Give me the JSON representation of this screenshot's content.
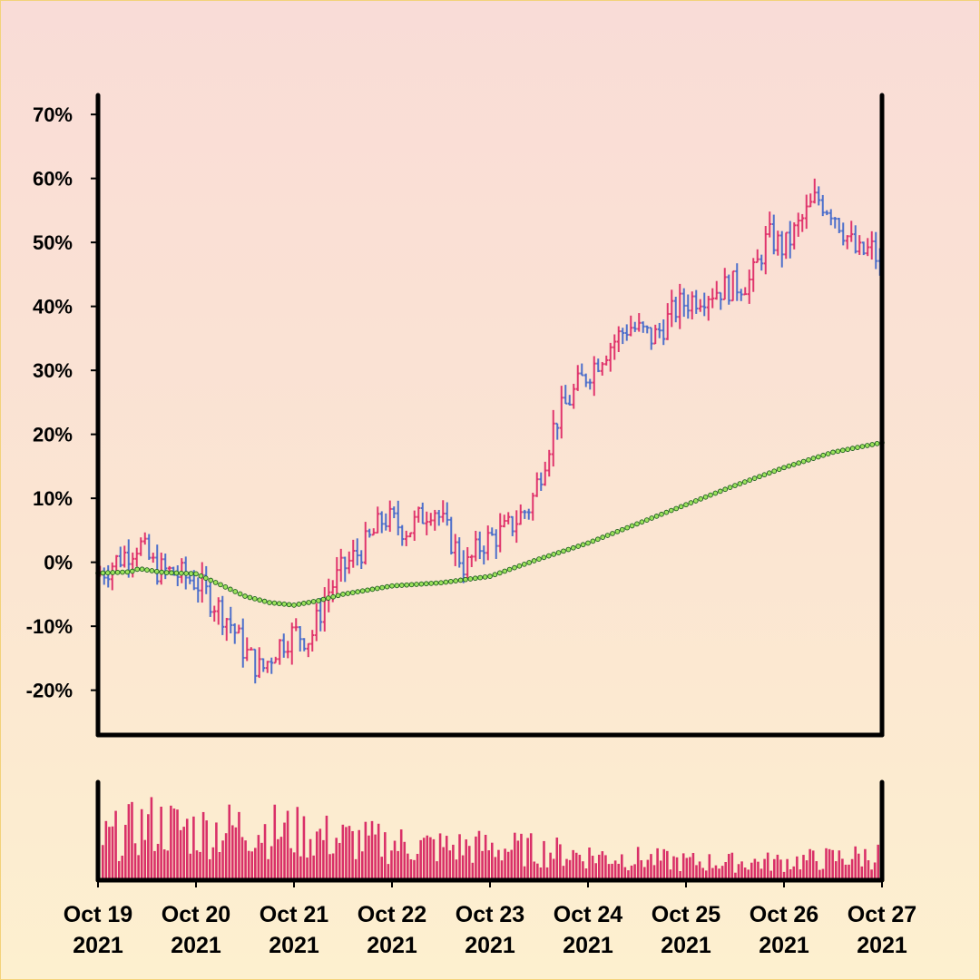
{
  "chart_data": {
    "type": "ohlc",
    "title": "",
    "xlabel": "",
    "ylabel": "",
    "ylim": [
      -27,
      73
    ],
    "y_ticks": [
      {
        "value": 70,
        "label": "70%"
      },
      {
        "value": 60,
        "label": "60%"
      },
      {
        "value": 50,
        "label": "50%"
      },
      {
        "value": 40,
        "label": "40%"
      },
      {
        "value": 30,
        "label": "30%"
      },
      {
        "value": 20,
        "label": "20%"
      },
      {
        "value": 10,
        "label": "10%"
      },
      {
        "value": 0,
        "label": "0%"
      },
      {
        "value": -10,
        "label": "-10%"
      },
      {
        "value": -20,
        "label": "-20%"
      }
    ],
    "x_range": [
      "2021-10-19",
      "2021-10-27"
    ],
    "x_ticks": [
      {
        "date": "2021-10-19",
        "line1": "Oct 19",
        "line2": "2021"
      },
      {
        "date": "2021-10-20",
        "line1": "Oct 20",
        "line2": "2021"
      },
      {
        "date": "2021-10-21",
        "line1": "Oct 21",
        "line2": "2021"
      },
      {
        "date": "2021-10-22",
        "line1": "Oct 22",
        "line2": "2021"
      },
      {
        "date": "2021-10-23",
        "line1": "Oct 23",
        "line2": "2021"
      },
      {
        "date": "2021-10-24",
        "line1": "Oct 24",
        "line2": "2021"
      },
      {
        "date": "2021-10-25",
        "line1": "Oct 25",
        "line2": "2021"
      },
      {
        "date": "2021-10-26",
        "line1": "Oct 26",
        "line2": "2021"
      },
      {
        "date": "2021-10-27",
        "line1": "Oct 27",
        "line2": "2021"
      }
    ],
    "price_path": [
      [
        "2021-10-19 00:00",
        -2
      ],
      [
        "2021-10-19 06:00",
        1
      ],
      [
        "2021-10-19 10:00",
        3
      ],
      [
        "2021-10-19 14:00",
        -1
      ],
      [
        "2021-10-19 20:00",
        -2
      ],
      [
        "2021-10-20 00:00",
        -3
      ],
      [
        "2021-10-20 04:00",
        -6
      ],
      [
        "2021-10-20 08:00",
        -9
      ],
      [
        "2021-10-20 12:00",
        -14
      ],
      [
        "2021-10-20 16:00",
        -17
      ],
      [
        "2021-10-20 20:00",
        -13
      ],
      [
        "2021-10-21 00:00",
        -11
      ],
      [
        "2021-10-21 04:00",
        -12
      ],
      [
        "2021-10-21 08:00",
        -5
      ],
      [
        "2021-10-21 12:00",
        -1
      ],
      [
        "2021-10-21 18:00",
        3
      ],
      [
        "2021-10-21 22:00",
        7
      ],
      [
        "2021-10-22 04:00",
        5
      ],
      [
        "2021-10-22 10:00",
        9
      ],
      [
        "2021-10-22 14:00",
        4
      ],
      [
        "2021-10-22 18:00",
        -1
      ],
      [
        "2021-10-22 22:00",
        3
      ],
      [
        "2021-10-23 04:00",
        5
      ],
      [
        "2021-10-23 10:00",
        9
      ],
      [
        "2021-10-23 16:00",
        22
      ],
      [
        "2021-10-23 22:00",
        28
      ],
      [
        "2021-10-24 04:00",
        33
      ],
      [
        "2021-10-24 10:00",
        37
      ],
      [
        "2021-10-24 16:00",
        35
      ],
      [
        "2021-10-24 22:00",
        40
      ],
      [
        "2021-10-25 04:00",
        42
      ],
      [
        "2021-10-25 10:00",
        43
      ],
      [
        "2021-10-25 16:00",
        44
      ],
      [
        "2021-10-25 20:00",
        51
      ],
      [
        "2021-10-26 00:00",
        49
      ],
      [
        "2021-10-26 04:00",
        53
      ],
      [
        "2021-10-26 08:00",
        57
      ],
      [
        "2021-10-26 12:00",
        55
      ],
      [
        "2021-10-26 18:00",
        48
      ],
      [
        "2021-10-26 22:00",
        49
      ],
      [
        "2021-10-27 00:00",
        44
      ]
    ],
    "moving_average": [
      [
        "2021-10-19 00:00",
        -1.7
      ],
      [
        "2021-10-19 08:00",
        -1.5
      ],
      [
        "2021-10-19 10:00",
        -1.0
      ],
      [
        "2021-10-19 16:00",
        -1.6
      ],
      [
        "2021-10-20 00:00",
        -1.8
      ],
      [
        "2021-10-20 06:00",
        -3.5
      ],
      [
        "2021-10-20 12:00",
        -5.3
      ],
      [
        "2021-10-20 18:00",
        -6.3
      ],
      [
        "2021-10-21 00:00",
        -6.7
      ],
      [
        "2021-10-21 06:00",
        -6.0
      ],
      [
        "2021-10-21 12:00",
        -5.0
      ],
      [
        "2021-10-22 00:00",
        -3.7
      ],
      [
        "2021-10-22 12:00",
        -3.2
      ],
      [
        "2021-10-23 00:00",
        -2.2
      ],
      [
        "2021-10-23 12:00",
        0.5
      ],
      [
        "2021-10-24 00:00",
        3.0
      ],
      [
        "2021-10-24 12:00",
        6.0
      ],
      [
        "2021-10-25 00:00",
        9.0
      ],
      [
        "2021-10-25 12:00",
        12.0
      ],
      [
        "2021-10-26 00:00",
        14.8
      ],
      [
        "2021-10-26 12:00",
        17.2
      ],
      [
        "2021-10-27 00:00",
        18.7
      ]
    ],
    "volume_profile": [
      [
        "2021-10-19 00:00",
        0.6
      ],
      [
        "2021-10-19 12:00",
        0.85
      ],
      [
        "2021-10-20 00:00",
        0.75
      ],
      [
        "2021-10-20 12:00",
        0.8
      ],
      [
        "2021-10-21 00:00",
        0.72
      ],
      [
        "2021-10-21 12:00",
        0.62
      ],
      [
        "2021-10-22 00:00",
        0.55
      ],
      [
        "2021-10-22 12:00",
        0.5
      ],
      [
        "2021-10-23 00:00",
        0.5
      ],
      [
        "2021-10-23 12:00",
        0.45
      ],
      [
        "2021-10-24 00:00",
        0.38
      ],
      [
        "2021-10-24 12:00",
        0.33
      ],
      [
        "2021-10-25 00:00",
        0.28
      ],
      [
        "2021-10-25 12:00",
        0.27
      ],
      [
        "2021-10-26 00:00",
        0.28
      ],
      [
        "2021-10-26 12:00",
        0.33
      ],
      [
        "2021-10-27 00:00",
        0.38
      ]
    ],
    "volume_ylim": [
      0,
      1
    ],
    "colors": {
      "up": "#e0356d",
      "down": "#4d6fcb",
      "volume": "#d93068",
      "ma_fill": "#9be35c",
      "ma_stroke": "#1f5f1f",
      "axis": "#000000"
    },
    "grid": false,
    "legend": "none"
  }
}
